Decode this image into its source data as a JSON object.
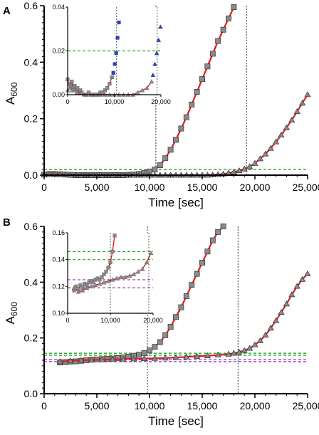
{
  "chart_data": [
    {
      "panel": "A",
      "type": "scatter",
      "xlabel": "Time [sec]",
      "ylabel": "A",
      "ylabel_sub": "600",
      "xlim": [
        0,
        25000
      ],
      "ylim": [
        0,
        0.6
      ],
      "xticks": [
        0,
        5000,
        10000,
        15000,
        20000,
        25000
      ],
      "xtick_labels": [
        "0",
        "5,000",
        "10,000",
        "15,000",
        "20,000",
        "25,000"
      ],
      "yticks": [
        0,
        0.2,
        0.4,
        0.6
      ],
      "ytick_labels": [
        "0.0",
        "0.2",
        "0.4",
        "0.6"
      ],
      "threshold_lines": [
        {
          "y": 0.02,
          "color": "#1ea51e"
        }
      ],
      "vertical_markers": [
        10600,
        19200
      ],
      "colors": {
        "squares": "#8a8a8a",
        "triangles": "#8a8a8a",
        "fit": "#e41a1c",
        "highlight": "#1f3fd6"
      },
      "series": [
        {
          "marker": "square",
          "x": [
            0,
            500,
            1000,
            1500,
            2000,
            2500,
            3000,
            3500,
            4000,
            4500,
            5000,
            5500,
            6000,
            6500,
            7000,
            7500,
            8000,
            8500,
            9000,
            9500,
            10000,
            10500,
            11000,
            11500,
            12000,
            12500,
            13000,
            13500,
            14000,
            14500,
            15000,
            15500,
            16000,
            16500,
            17000,
            17500,
            18000
          ],
          "y": [
            0.002,
            0.004,
            0.004,
            0.003,
            0.002,
            0.001,
            0,
            0,
            0,
            0,
            0,
            0,
            0,
            0,
            0,
            0,
            0.001,
            0.002,
            0.004,
            0.008,
            0.013,
            0.02,
            0.035,
            0.06,
            0.09,
            0.125,
            0.165,
            0.205,
            0.25,
            0.295,
            0.34,
            0.385,
            0.43,
            0.475,
            0.515,
            0.555,
            0.595
          ]
        },
        {
          "marker": "triangle",
          "x": [
            0,
            500,
            1000,
            1500,
            2000,
            2500,
            3000,
            3500,
            4000,
            4500,
            5000,
            5500,
            6000,
            6500,
            7000,
            7500,
            8000,
            8500,
            9000,
            9500,
            10000,
            10500,
            11000,
            11500,
            12000,
            12500,
            13000,
            13500,
            14000,
            14500,
            15000,
            15500,
            16000,
            16500,
            17000,
            17500,
            18000,
            18500,
            19000,
            19500,
            20000,
            20500,
            21000,
            21500,
            22000,
            22500,
            23000,
            23500,
            24000,
            24500,
            25000
          ],
          "y": [
            0.001,
            0.002,
            0.003,
            0.002,
            0.001,
            0,
            0,
            0,
            0,
            0,
            0,
            0,
            0,
            0,
            0,
            0,
            0,
            0,
            0,
            0,
            0,
            0,
            0,
            0,
            0,
            0,
            0,
            0,
            0,
            0,
            0,
            0,
            0.001,
            0.002,
            0.004,
            0.007,
            0.011,
            0.016,
            0.022,
            0.03,
            0.042,
            0.058,
            0.075,
            0.095,
            0.118,
            0.142,
            0.168,
            0.195,
            0.225,
            0.255,
            0.285
          ]
        }
      ],
      "inset": {
        "xlim": [
          0,
          20000
        ],
        "ylim": [
          0,
          0.04
        ],
        "xticks": [
          0,
          10000,
          20000
        ],
        "xtick_labels": [
          "0",
          "10,000",
          "20,000"
        ],
        "yticks": [
          0,
          0.02,
          0.04
        ],
        "ytick_labels": [
          "0.00",
          "0.02",
          "0.04"
        ],
        "threshold_lines": [
          {
            "y": 0.02,
            "color": "#1ea51e"
          }
        ],
        "vertical_markers": [
          10500,
          19200
        ],
        "series": [
          {
            "marker": "square",
            "x": [
              0,
              300,
              600,
              900,
              1200,
              1500,
              1800,
              2100,
              2400,
              2700,
              3000,
              3500,
              4000,
              4500,
              5000,
              5500,
              6000,
              6500,
              7000,
              7500,
              8000,
              8500,
              9000,
              9500
            ],
            "y": [
              0.007,
              0.005,
              0.004,
              0.006,
              0.003,
              0.004,
              0.002,
              0.003,
              0.001,
              0.002,
              0.001,
              0.0,
              0.0,
              0.001,
              0.0,
              0.0,
              0.0,
              0.0,
              0.001,
              0.001,
              0.002,
              0.003,
              0.005,
              0.008
            ]
          },
          {
            "marker": "square-highlight",
            "x": [
              9800,
              10100,
              10400,
              10700,
              11000
            ],
            "y": [
              0.01,
              0.014,
              0.019,
              0.026,
              0.033
            ]
          },
          {
            "marker": "triangle",
            "x": [
              0,
              500,
              1000,
              1500,
              2000,
              3000,
              4000,
              5000,
              6000,
              7000,
              8000,
              9000,
              10000,
              11000,
              12000,
              13000,
              14000,
              15000,
              16000,
              17000,
              18000
            ],
            "y": [
              0.002,
              0.003,
              0.002,
              0.002,
              0.001,
              0.001,
              0.0,
              0.0,
              0.0,
              0.0,
              0.0,
              0.0,
              0.0,
              0.0,
              0.0,
              0.0,
              0.0,
              0.001,
              0.002,
              0.003,
              0.006
            ]
          },
          {
            "marker": "triangle-highlight",
            "x": [
              18300,
              18700,
              19100,
              19500,
              19900
            ],
            "y": [
              0.009,
              0.014,
              0.019,
              0.025,
              0.031
            ]
          }
        ]
      }
    },
    {
      "panel": "B",
      "type": "scatter",
      "xlabel": "Time [sec]",
      "ylabel": "A",
      "ylabel_sub": "600",
      "xlim": [
        0,
        25000
      ],
      "ylim": [
        0,
        0.6
      ],
      "xticks": [
        0,
        5000,
        10000,
        15000,
        20000,
        25000
      ],
      "xtick_labels": [
        "0",
        "5,000",
        "10,000",
        "15,000",
        "20,000",
        "25,000"
      ],
      "yticks": [
        0,
        0.2,
        0.4,
        0.6
      ],
      "ytick_labels": [
        "0.0",
        "0.2",
        "0.4",
        "0.6"
      ],
      "threshold_lines": [
        {
          "y": 0.145,
          "color": "#1ea51e"
        },
        {
          "y": 0.138,
          "color": "#1ea51e"
        },
        {
          "y": 0.122,
          "color": "#9a2fc4"
        },
        {
          "y": 0.115,
          "color": "#9a2fc4"
        }
      ],
      "vertical_markers": [
        9800,
        18400
      ],
      "colors": {
        "squares": "#8a8a8a",
        "triangles": "#8a8a8a",
        "fit": "#e41a1c"
      },
      "series": [
        {
          "marker": "square",
          "x": [
            1500,
            2000,
            2500,
            3000,
            3500,
            4000,
            4500,
            5000,
            5500,
            6000,
            6500,
            7000,
            7500,
            8000,
            8500,
            9000,
            9500,
            10000,
            10500,
            11000,
            11500,
            12000,
            12500,
            13000,
            13500,
            14000,
            14500,
            15000,
            15500,
            16000,
            16500,
            17000
          ],
          "y": [
            0.112,
            0.113,
            0.115,
            0.116,
            0.118,
            0.12,
            0.122,
            0.123,
            0.124,
            0.125,
            0.126,
            0.128,
            0.13,
            0.133,
            0.136,
            0.14,
            0.146,
            0.155,
            0.168,
            0.185,
            0.21,
            0.24,
            0.275,
            0.31,
            0.35,
            0.39,
            0.43,
            0.47,
            0.51,
            0.55,
            0.58,
            0.6
          ]
        },
        {
          "marker": "triangle",
          "x": [
            1500,
            2500,
            3500,
            4500,
            5500,
            6500,
            7500,
            8500,
            9500,
            10500,
            11500,
            12500,
            13500,
            14500,
            15500,
            16500,
            17500,
            18000,
            18500,
            19000,
            19500,
            20000,
            20500,
            21000,
            21500,
            22000,
            22500,
            23000,
            23500,
            24000,
            24500,
            25000
          ],
          "y": [
            0.115,
            0.118,
            0.12,
            0.121,
            0.122,
            0.123,
            0.124,
            0.125,
            0.126,
            0.127,
            0.128,
            0.13,
            0.132,
            0.134,
            0.136,
            0.139,
            0.142,
            0.145,
            0.149,
            0.155,
            0.163,
            0.175,
            0.19,
            0.21,
            0.235,
            0.262,
            0.292,
            0.322,
            0.355,
            0.385,
            0.41,
            0.43
          ]
        }
      ],
      "inset": {
        "xlim": [
          0,
          20000
        ],
        "ylim": [
          0.1,
          0.16
        ],
        "xticks": [
          0,
          10000,
          20000
        ],
        "xtick_labels": [
          "0",
          "10,000",
          "20,000"
        ],
        "yticks": [
          0.1,
          0.12,
          0.14,
          0.16
        ],
        "ytick_labels": [
          "0.10",
          "0.12",
          "0.14",
          "0.16"
        ],
        "threshold_lines": [
          {
            "y": 0.146,
            "color": "#1ea51e"
          },
          {
            "y": 0.14,
            "color": "#1ea51e"
          },
          {
            "y": 0.125,
            "color": "#9a2fc4"
          },
          {
            "y": 0.119,
            "color": "#9a2fc4"
          }
        ],
        "vertical_markers": [
          10000,
          19000
        ],
        "series": [
          {
            "marker": "square",
            "x": [
              1500,
              2000,
              2500,
              3000,
              3500,
              4000,
              4500,
              5000,
              5500,
              6000,
              6500,
              7000,
              7500,
              8000,
              8500,
              9000,
              9500,
              10000,
              10500,
              11000
            ],
            "y": [
              0.117,
              0.12,
              0.118,
              0.121,
              0.119,
              0.122,
              0.121,
              0.123,
              0.124,
              0.123,
              0.125,
              0.126,
              0.125,
              0.127,
              0.129,
              0.131,
              0.134,
              0.138,
              0.146,
              0.158
            ]
          },
          {
            "marker": "triangle",
            "x": [
              1500,
              2500,
              3500,
              4500,
              5500,
              6500,
              7500,
              8500,
              9500,
              10500,
              11500,
              12500,
              13500,
              14500,
              15500,
              16500,
              17500,
              18500,
              19500
            ],
            "y": [
              0.119,
              0.116,
              0.117,
              0.119,
              0.12,
              0.121,
              0.122,
              0.123,
              0.124,
              0.125,
              0.126,
              0.127,
              0.127,
              0.128,
              0.129,
              0.131,
              0.133,
              0.138,
              0.145
            ]
          }
        ]
      }
    }
  ]
}
